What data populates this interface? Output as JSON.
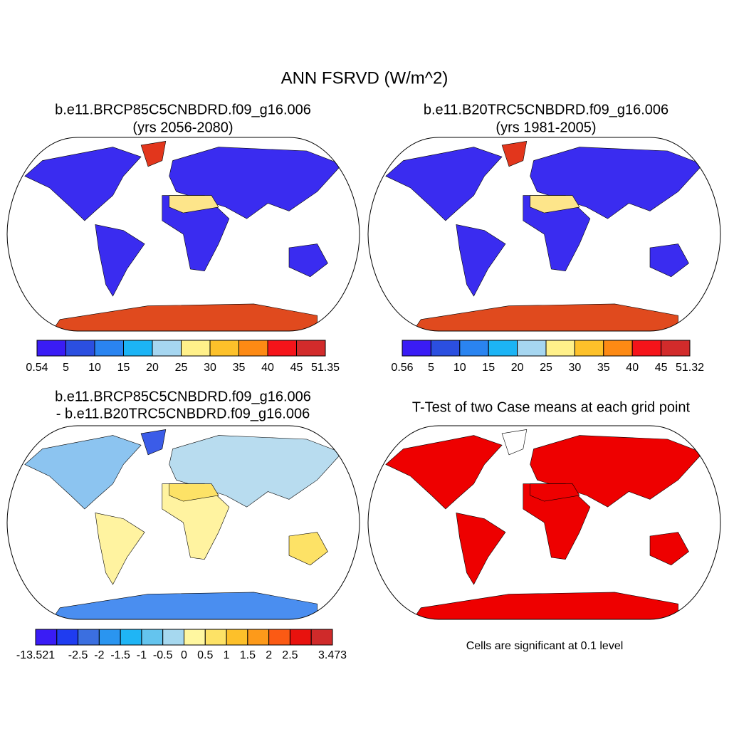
{
  "title": "ANN FSRVD (W/m^2)",
  "panels": [
    {
      "title": [
        "b.e11.BRCP85C5CNBDRD.f09_g16.006",
        "(yrs 2056-2080)"
      ],
      "colorbar": {
        "colors": [
          "#3a1cf5",
          "#2b4fe0",
          "#2a84f0",
          "#1cb4f5",
          "#a6d6f0",
          "#fff08a",
          "#fdc12a",
          "#fd8a14",
          "#f5141a",
          "#d22b2b"
        ],
        "labels": [
          "0.54",
          "5",
          "10",
          "15",
          "20",
          "25",
          "30",
          "35",
          "40",
          "45",
          "51.35"
        ]
      }
    },
    {
      "title": [
        "b.e11.B20TRC5CNBDRD.f09_g16.006",
        "(yrs 1981-2005)"
      ],
      "colorbar": {
        "colors": [
          "#3a1cf5",
          "#2b4fe0",
          "#2a84f0",
          "#1cb4f5",
          "#a6d6f0",
          "#fff08a",
          "#fdc12a",
          "#fd8a14",
          "#f5141a",
          "#d22b2b"
        ],
        "labels": [
          "0.56",
          "5",
          "10",
          "15",
          "20",
          "25",
          "30",
          "35",
          "40",
          "45",
          "51.32"
        ]
      }
    },
    {
      "title": [
        "b.e11.BRCP85C5CNBDRD.f09_g16.006",
        "- b.e11.B20TRC5CNBDRD.f09_g16.006"
      ],
      "colorbar": {
        "colors": [
          "#3a1cf5",
          "#1f3cf0",
          "#3b6fe0",
          "#2a95f0",
          "#1fb5f5",
          "#64c4ee",
          "#a6d8ef",
          "#fff7a0",
          "#fde266",
          "#fdc02a",
          "#fd9a1a",
          "#fb5a14",
          "#e8120e",
          "#cf2a2a"
        ],
        "labels": [
          "-13.521",
          null,
          "-2.5",
          "-2",
          "-1.5",
          "-1",
          "-0.5",
          "0",
          "0.5",
          "1",
          "1.5",
          "2",
          "2.5",
          null,
          "3.473"
        ]
      }
    },
    {
      "title": [
        "T-Test of two Case means at each grid point"
      ],
      "note": "Cells are significant at 0.1 level"
    }
  ]
}
